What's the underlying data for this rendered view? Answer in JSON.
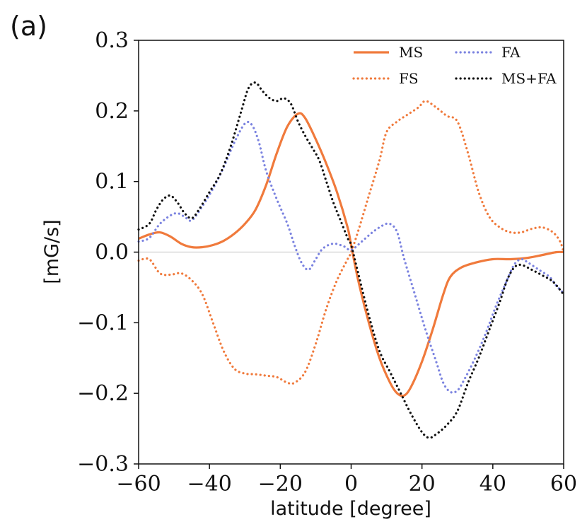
{
  "panel_label": "(a)",
  "colors": {
    "orange": "#f07a3c",
    "blue": "#7b83e0",
    "black": "#111111",
    "zero_line": "#d9d9d9"
  },
  "chart_data": {
    "type": "line",
    "title": "",
    "xlabel": "latitude [degree]",
    "ylabel": "[mG/s]",
    "xlim": [
      -60,
      60
    ],
    "ylim": [
      -0.3,
      0.3
    ],
    "xticks": [
      -60,
      -40,
      -20,
      0,
      20,
      40,
      60
    ],
    "xtick_labels": [
      "−60",
      "−40",
      "−20",
      "0",
      "20",
      "40",
      "60"
    ],
    "yticks": [
      0.3,
      0.2,
      0.1,
      0.0,
      -0.1,
      -0.2,
      -0.3
    ],
    "ytick_labels": [
      "0.3",
      "0.2",
      "0.1",
      "0.0",
      "−0.1",
      "−0.2",
      "−0.3"
    ],
    "grid": false,
    "zero_line": true,
    "legend_position": "top-right",
    "series": [
      {
        "name": "MS",
        "style": "solid",
        "color": "#f07a3c",
        "points": [
          [
            -60,
            0.019
          ],
          [
            -57,
            0.025
          ],
          [
            -54,
            0.028
          ],
          [
            -51,
            0.022
          ],
          [
            -48,
            0.012
          ],
          [
            -45,
            0.007
          ],
          [
            -42,
            0.007
          ],
          [
            -39,
            0.01
          ],
          [
            -36,
            0.016
          ],
          [
            -33,
            0.026
          ],
          [
            -30,
            0.04
          ],
          [
            -27,
            0.06
          ],
          [
            -24,
            0.095
          ],
          [
            -21,
            0.14
          ],
          [
            -18,
            0.178
          ],
          [
            -15,
            0.196
          ],
          [
            -13,
            0.19
          ],
          [
            -10,
            0.16
          ],
          [
            -7,
            0.125
          ],
          [
            -4,
            0.085
          ],
          [
            -1,
            0.035
          ],
          [
            0,
            0.01
          ],
          [
            2,
            -0.04
          ],
          [
            5,
            -0.1
          ],
          [
            8,
            -0.15
          ],
          [
            11,
            -0.185
          ],
          [
            13,
            -0.2
          ],
          [
            15,
            -0.203
          ],
          [
            17,
            -0.19
          ],
          [
            20,
            -0.155
          ],
          [
            23,
            -0.11
          ],
          [
            26,
            -0.06
          ],
          [
            28,
            -0.035
          ],
          [
            31,
            -0.022
          ],
          [
            35,
            -0.015
          ],
          [
            40,
            -0.01
          ],
          [
            45,
            -0.01
          ],
          [
            50,
            -0.008
          ],
          [
            55,
            -0.003
          ],
          [
            58,
            0.0
          ],
          [
            60,
            0.0
          ]
        ]
      },
      {
        "name": "FS",
        "style": "dotted",
        "color": "#f07a3c",
        "points": [
          [
            -60,
            -0.012
          ],
          [
            -57,
            -0.01
          ],
          [
            -54,
            -0.03
          ],
          [
            -51,
            -0.032
          ],
          [
            -48,
            -0.03
          ],
          [
            -45,
            -0.04
          ],
          [
            -42,
            -0.06
          ],
          [
            -39,
            -0.1
          ],
          [
            -36,
            -0.14
          ],
          [
            -33,
            -0.165
          ],
          [
            -30,
            -0.172
          ],
          [
            -27,
            -0.173
          ],
          [
            -24,
            -0.175
          ],
          [
            -21,
            -0.177
          ],
          [
            -18,
            -0.185
          ],
          [
            -16,
            -0.185
          ],
          [
            -13,
            -0.17
          ],
          [
            -10,
            -0.13
          ],
          [
            -7,
            -0.08
          ],
          [
            -4,
            -0.04
          ],
          [
            -1,
            -0.01
          ],
          [
            0,
            0.0
          ],
          [
            2,
            0.03
          ],
          [
            5,
            0.08
          ],
          [
            8,
            0.13
          ],
          [
            10,
            0.17
          ],
          [
            13,
            0.185
          ],
          [
            16,
            0.195
          ],
          [
            19,
            0.205
          ],
          [
            21,
            0.214
          ],
          [
            24,
            0.205
          ],
          [
            27,
            0.193
          ],
          [
            30,
            0.185
          ],
          [
            33,
            0.14
          ],
          [
            36,
            0.085
          ],
          [
            39,
            0.05
          ],
          [
            42,
            0.035
          ],
          [
            45,
            0.028
          ],
          [
            48,
            0.028
          ],
          [
            51,
            0.033
          ],
          [
            54,
            0.035
          ],
          [
            57,
            0.028
          ],
          [
            59,
            0.015
          ],
          [
            60,
            0.0
          ]
        ]
      },
      {
        "name": "FA",
        "style": "dotted",
        "color": "#7b83e0",
        "points": [
          [
            -60,
            0.015
          ],
          [
            -57,
            0.02
          ],
          [
            -54,
            0.04
          ],
          [
            -51,
            0.052
          ],
          [
            -49,
            0.055
          ],
          [
            -47,
            0.05
          ],
          [
            -45,
            0.045
          ],
          [
            -42,
            0.065
          ],
          [
            -39,
            0.09
          ],
          [
            -36,
            0.12
          ],
          [
            -33,
            0.155
          ],
          [
            -30,
            0.182
          ],
          [
            -28,
            0.18
          ],
          [
            -26,
            0.155
          ],
          [
            -24,
            0.115
          ],
          [
            -21,
            0.075
          ],
          [
            -18,
            0.04
          ],
          [
            -16,
            0.01
          ],
          [
            -14,
            -0.015
          ],
          [
            -12,
            -0.025
          ],
          [
            -10,
            -0.01
          ],
          [
            -8,
            0.005
          ],
          [
            -5,
            0.012
          ],
          [
            -2,
            0.008
          ],
          [
            0,
            0.003
          ],
          [
            3,
            0.015
          ],
          [
            6,
            0.028
          ],
          [
            9,
            0.038
          ],
          [
            11,
            0.04
          ],
          [
            13,
            0.028
          ],
          [
            15,
            -0.01
          ],
          [
            18,
            -0.06
          ],
          [
            21,
            -0.11
          ],
          [
            24,
            -0.155
          ],
          [
            26,
            -0.185
          ],
          [
            28,
            -0.198
          ],
          [
            30,
            -0.196
          ],
          [
            32,
            -0.18
          ],
          [
            35,
            -0.15
          ],
          [
            38,
            -0.115
          ],
          [
            41,
            -0.075
          ],
          [
            44,
            -0.04
          ],
          [
            46,
            -0.018
          ],
          [
            48,
            -0.01
          ],
          [
            50,
            -0.015
          ],
          [
            53,
            -0.025
          ],
          [
            56,
            -0.035
          ],
          [
            58,
            -0.048
          ],
          [
            60,
            -0.058
          ]
        ]
      },
      {
        "name": "MS+FA",
        "style": "dotted",
        "color": "#111111",
        "points": [
          [
            -60,
            0.032
          ],
          [
            -57,
            0.04
          ],
          [
            -55,
            0.06
          ],
          [
            -53,
            0.075
          ],
          [
            -51,
            0.08
          ],
          [
            -49,
            0.07
          ],
          [
            -47,
            0.055
          ],
          [
            -45,
            0.048
          ],
          [
            -43,
            0.06
          ],
          [
            -40,
            0.085
          ],
          [
            -37,
            0.11
          ],
          [
            -34,
            0.15
          ],
          [
            -31,
            0.2
          ],
          [
            -29,
            0.232
          ],
          [
            -27,
            0.24
          ],
          [
            -25,
            0.228
          ],
          [
            -23,
            0.218
          ],
          [
            -21,
            0.214
          ],
          [
            -19,
            0.218
          ],
          [
            -17,
            0.21
          ],
          [
            -15,
            0.185
          ],
          [
            -13,
            0.165
          ],
          [
            -11,
            0.148
          ],
          [
            -9,
            0.13
          ],
          [
            -7,
            0.1
          ],
          [
            -5,
            0.07
          ],
          [
            -3,
            0.045
          ],
          [
            -1,
            0.02
          ],
          [
            0,
            0.01
          ],
          [
            2,
            -0.03
          ],
          [
            5,
            -0.09
          ],
          [
            8,
            -0.14
          ],
          [
            11,
            -0.17
          ],
          [
            14,
            -0.2
          ],
          [
            17,
            -0.23
          ],
          [
            20,
            -0.255
          ],
          [
            22,
            -0.263
          ],
          [
            24,
            -0.258
          ],
          [
            27,
            -0.245
          ],
          [
            30,
            -0.225
          ],
          [
            33,
            -0.185
          ],
          [
            36,
            -0.15
          ],
          [
            39,
            -0.11
          ],
          [
            42,
            -0.07
          ],
          [
            44,
            -0.04
          ],
          [
            46,
            -0.022
          ],
          [
            48,
            -0.018
          ],
          [
            51,
            -0.025
          ],
          [
            54,
            -0.033
          ],
          [
            57,
            -0.042
          ],
          [
            60,
            -0.06
          ]
        ]
      }
    ]
  }
}
